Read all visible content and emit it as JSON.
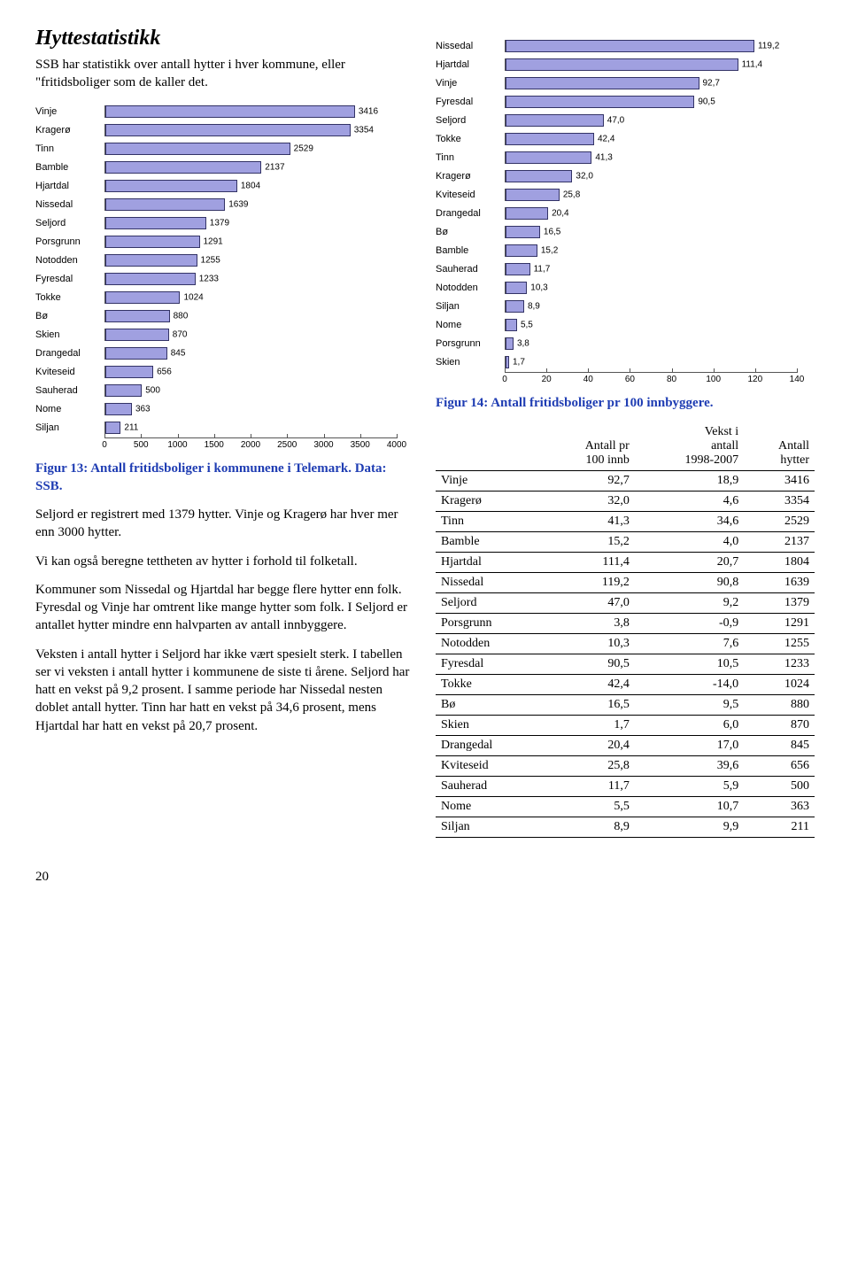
{
  "title": "Hyttestatistikk",
  "intro": "SSB har statistikk over antall hytter i hver kommune, eller \"fritidsboliger som de kaller det.",
  "chart13": {
    "type": "bar",
    "bar_fill": "#a0a0e0",
    "bar_stroke": "#333366",
    "border_color": "#555555",
    "label_font": "Arial",
    "label_fontsize": 11,
    "value_fontsize": 10,
    "max": 4000,
    "ticks": [
      0,
      500,
      1000,
      1500,
      2000,
      2500,
      3000,
      3500,
      4000
    ],
    "bar_area_width": 330,
    "categories": [
      "Vinje",
      "Kragerø",
      "Tinn",
      "Bamble",
      "Hjartdal",
      "Nissedal",
      "Seljord",
      "Porsgrunn",
      "Notodden",
      "Fyresdal",
      "Tokke",
      "Bø",
      "Skien",
      "Drangedal",
      "Kviteseid",
      "Sauherad",
      "Nome",
      "Siljan"
    ],
    "values": [
      3416,
      3354,
      2529,
      2137,
      1804,
      1639,
      1379,
      1291,
      1255,
      1233,
      1024,
      880,
      870,
      845,
      656,
      500,
      363,
      211
    ]
  },
  "caption13": "Figur 13: Antall fritidsboliger i kommunene i Telemark. Data: SSB.",
  "body_paragraphs": [
    "Seljord er registrert med 1379 hytter.  Vinje og Kragerø har hver mer enn 3000 hytter.",
    "Vi kan også beregne tettheten av hytter i forhold til folketall.",
    "Kommuner som Nissedal og Hjartdal har begge flere hytter enn folk.  Fyresdal og Vinje har omtrent like mange hytter som folk.  I Seljord er antallet hytter mindre enn halvparten av antall innbyggere.",
    "Veksten i antall hytter i Seljord har ikke vært spesielt sterk.  I tabellen ser vi veksten i antall hytter i kommunene de siste ti årene.  Seljord har hatt en vekst på 9,2 prosent.  I samme periode har Nissedal nesten doblet antall hytter.  Tinn har hatt en vekst på 34,6 prosent, mens Hjartdal har hatt en vekst på 20,7 prosent."
  ],
  "chart14": {
    "type": "bar",
    "bar_fill": "#a0a0e0",
    "bar_stroke": "#333366",
    "border_color": "#555555",
    "label_font": "Arial",
    "label_fontsize": 11,
    "value_fontsize": 10,
    "max": 140,
    "ticks": [
      0,
      20,
      40,
      60,
      80,
      100,
      120,
      140
    ],
    "bar_area_width": 330,
    "categories": [
      "Nissedal",
      "Hjartdal",
      "Vinje",
      "Fyresdal",
      "Seljord",
      "Tokke",
      "Tinn",
      "Kragerø",
      "Kviteseid",
      "Drangedal",
      "Bø",
      "Bamble",
      "Sauherad",
      "Notodden",
      "Siljan",
      "Nome",
      "Porsgrunn",
      "Skien"
    ],
    "values_display": [
      "119,2",
      "111,4",
      "92,7",
      "90,5",
      "47,0",
      "42,4",
      "41,3",
      "32,0",
      "25,8",
      "20,4",
      "16,5",
      "15,2",
      "11,7",
      "10,3",
      "8,9",
      "5,5",
      "3,8",
      "1,7"
    ],
    "values_num": [
      119.2,
      111.4,
      92.7,
      90.5,
      47.0,
      42.4,
      41.3,
      32.0,
      25.8,
      20.4,
      16.5,
      15.2,
      11.7,
      10.3,
      8.9,
      5.5,
      3.8,
      1.7
    ]
  },
  "caption14": "Figur 14: Antall fritidsboliger pr 100 innbyggere.",
  "table": {
    "headers": [
      "",
      "Antall pr 100 innb",
      "Vekst i antall 1998-2007",
      "Antall hytter"
    ],
    "rows": [
      [
        "Vinje",
        "92,7",
        "18,9",
        "3416"
      ],
      [
        "Kragerø",
        "32,0",
        "4,6",
        "3354"
      ],
      [
        "Tinn",
        "41,3",
        "34,6",
        "2529"
      ],
      [
        "Bamble",
        "15,2",
        "4,0",
        "2137"
      ],
      [
        "Hjartdal",
        "111,4",
        "20,7",
        "1804"
      ],
      [
        "Nissedal",
        "119,2",
        "90,8",
        "1639"
      ],
      [
        "Seljord",
        "47,0",
        "9,2",
        "1379"
      ],
      [
        "Porsgrunn",
        "3,8",
        "-0,9",
        "1291"
      ],
      [
        "Notodden",
        "10,3",
        "7,6",
        "1255"
      ],
      [
        "Fyresdal",
        "90,5",
        "10,5",
        "1233"
      ],
      [
        "Tokke",
        "42,4",
        "-14,0",
        "1024"
      ],
      [
        "Bø",
        "16,5",
        "9,5",
        "880"
      ],
      [
        "Skien",
        "1,7",
        "6,0",
        "870"
      ],
      [
        "Drangedal",
        "20,4",
        "17,0",
        "845"
      ],
      [
        "Kviteseid",
        "25,8",
        "39,6",
        "656"
      ],
      [
        "Sauherad",
        "11,7",
        "5,9",
        "500"
      ],
      [
        "Nome",
        "5,5",
        "10,7",
        "363"
      ],
      [
        "Siljan",
        "8,9",
        "9,9",
        "211"
      ]
    ]
  },
  "page_number": "20"
}
